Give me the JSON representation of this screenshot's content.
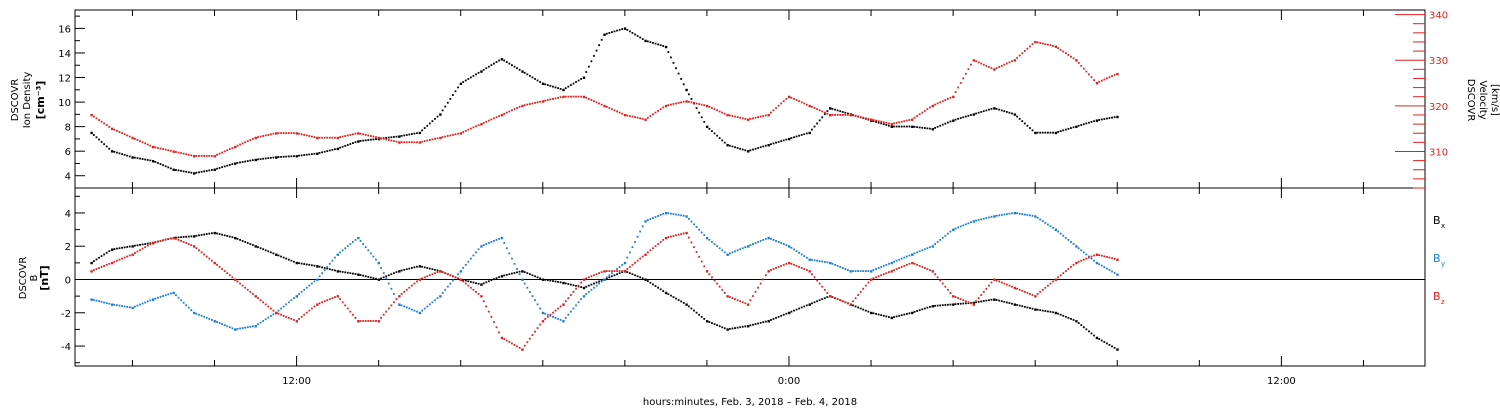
{
  "chart_data": [
    {
      "type": "scatter",
      "panel": "top",
      "ylabel_left": [
        "DSCOVR",
        "Ion Density",
        "[cm⁻³]"
      ],
      "ylabel_right": [
        "DSCOVR",
        "Velocity",
        "[km/s]"
      ],
      "ylim_left": [
        3,
        17.5
      ],
      "ylim_right": [
        302,
        341
      ],
      "yticks_left": [
        4,
        6,
        8,
        10,
        12,
        14,
        16
      ],
      "yticks_right": [
        310,
        320,
        330,
        340
      ],
      "series": [
        {
          "color": "#000000",
          "axis": "left",
          "x": [
            7.0,
            7.5,
            8.0,
            8.5,
            9.0,
            9.5,
            10.0,
            10.5,
            11.0,
            11.5,
            12.0,
            12.5,
            13.0,
            13.5,
            14.0,
            14.5,
            15.0,
            15.5,
            16.0,
            16.5,
            17.0,
            17.5,
            18.0,
            18.5,
            19.0,
            19.5,
            20.0,
            20.5,
            21.0,
            21.5,
            22.0,
            22.5,
            23.0,
            23.5,
            24.0,
            24.5,
            25.0,
            25.5,
            26.0,
            26.5,
            27.0,
            27.5,
            28.0,
            28.5,
            29.0,
            29.5,
            30.0,
            30.5,
            31.0,
            31.5,
            32.0
          ],
          "y": [
            7.5,
            6.0,
            5.5,
            5.2,
            4.5,
            4.2,
            4.5,
            5.0,
            5.3,
            5.5,
            5.6,
            5.8,
            6.2,
            6.8,
            7.0,
            7.2,
            7.5,
            9.0,
            11.5,
            12.5,
            13.5,
            12.5,
            11.5,
            11.0,
            12.0,
            15.5,
            16.0,
            15.0,
            14.5,
            11.0,
            8.0,
            6.5,
            6.0,
            6.5,
            7.0,
            7.5,
            9.5,
            9.0,
            8.5,
            8.0,
            8.0,
            7.8,
            8.5,
            9.0,
            9.5,
            9.0,
            7.5,
            7.5,
            8.0,
            8.5,
            8.8
          ]
        },
        {
          "color": "#e02020",
          "axis": "right",
          "x": [
            7.0,
            7.5,
            8.0,
            8.5,
            9.0,
            9.5,
            10.0,
            10.5,
            11.0,
            11.5,
            12.0,
            12.5,
            13.0,
            13.5,
            14.0,
            14.5,
            15.0,
            15.5,
            16.0,
            16.5,
            17.0,
            17.5,
            18.0,
            18.5,
            19.0,
            19.5,
            20.0,
            20.5,
            21.0,
            21.5,
            22.0,
            22.5,
            23.0,
            23.5,
            24.0,
            24.5,
            25.0,
            25.5,
            26.0,
            26.5,
            27.0,
            27.5,
            28.0,
            28.5,
            29.0,
            29.5,
            30.0,
            30.5,
            31.0,
            31.5,
            32.0
          ],
          "y": [
            318,
            315,
            313,
            311,
            310,
            309,
            309,
            311,
            313,
            314,
            314,
            313,
            313,
            314,
            313,
            312,
            312,
            313,
            314,
            316,
            318,
            320,
            321,
            322,
            322,
            320,
            318,
            317,
            320,
            321,
            320,
            318,
            317,
            318,
            322,
            320,
            318,
            318,
            317,
            316,
            317,
            320,
            322,
            330,
            328,
            330,
            334,
            333,
            330,
            325,
            327
          ]
        }
      ]
    },
    {
      "type": "scatter",
      "panel": "bottom",
      "ylabel_left": [
        "DSCOVR",
        "B",
        "[nT]"
      ],
      "ylim": [
        -5.2,
        5.5
      ],
      "yticks": [
        -4,
        -2,
        0,
        2,
        4
      ],
      "zero_line": true,
      "series": [
        {
          "name": "B",
          "sub": "x",
          "color": "#000000",
          "x": [
            7.0,
            7.5,
            8.0,
            8.5,
            9.0,
            9.5,
            10.0,
            10.5,
            11.0,
            11.5,
            12.0,
            12.5,
            13.0,
            13.5,
            14.0,
            14.5,
            15.0,
            15.5,
            16.0,
            16.5,
            17.0,
            17.5,
            18.0,
            18.5,
            19.0,
            19.5,
            20.0,
            20.5,
            21.0,
            21.5,
            22.0,
            22.5,
            23.0,
            23.5,
            24.0,
            24.5,
            25.0,
            25.5,
            26.0,
            26.5,
            27.0,
            27.5,
            28.0,
            28.5,
            29.0,
            29.5,
            30.0,
            30.5,
            31.0,
            31.5,
            32.0
          ],
          "y": [
            1.0,
            1.8,
            2.0,
            2.2,
            2.5,
            2.6,
            2.8,
            2.5,
            2.0,
            1.5,
            1.0,
            0.8,
            0.5,
            0.3,
            0.0,
            0.5,
            0.8,
            0.5,
            0.0,
            -0.3,
            0.2,
            0.5,
            0.0,
            -0.2,
            -0.5,
            0.0,
            0.5,
            0.0,
            -0.8,
            -1.5,
            -2.5,
            -3.0,
            -2.8,
            -2.5,
            -2.0,
            -1.5,
            -1.0,
            -1.5,
            -2.0,
            -2.3,
            -2.0,
            -1.6,
            -1.5,
            -1.4,
            -1.2,
            -1.5,
            -1.8,
            -2.0,
            -2.5,
            -3.5,
            -4.2
          ]
        },
        {
          "name": "B",
          "sub": "y",
          "color": "#1a7fd4",
          "x": [
            7.0,
            7.5,
            8.0,
            8.5,
            9.0,
            9.5,
            10.0,
            10.5,
            11.0,
            11.5,
            12.0,
            12.5,
            13.0,
            13.5,
            14.0,
            14.5,
            15.0,
            15.5,
            16.0,
            16.5,
            17.0,
            17.5,
            18.0,
            18.5,
            19.0,
            19.5,
            20.0,
            20.5,
            21.0,
            21.5,
            22.0,
            22.5,
            23.0,
            23.5,
            24.0,
            24.5,
            25.0,
            25.5,
            26.0,
            26.5,
            27.0,
            27.5,
            28.0,
            28.5,
            29.0,
            29.5,
            30.0,
            30.5,
            31.0,
            31.5,
            32.0
          ],
          "y": [
            -1.2,
            -1.5,
            -1.7,
            -1.2,
            -0.8,
            -2.0,
            -2.5,
            -3.0,
            -2.8,
            -2.0,
            -1.0,
            0.0,
            1.5,
            2.5,
            1.0,
            -1.5,
            -2.0,
            -1.0,
            0.5,
            2.0,
            2.5,
            0.0,
            -2.0,
            -2.5,
            -1.0,
            0.0,
            1.0,
            3.5,
            4.0,
            3.8,
            2.5,
            1.5,
            2.0,
            2.5,
            2.0,
            1.2,
            1.0,
            0.5,
            0.5,
            1.0,
            1.5,
            2.0,
            3.0,
            3.5,
            3.8,
            4.0,
            3.8,
            3.0,
            2.0,
            1.0,
            0.3
          ]
        },
        {
          "name": "B",
          "sub": "z",
          "color": "#e02020",
          "x": [
            7.0,
            7.5,
            8.0,
            8.5,
            9.0,
            9.5,
            10.0,
            10.5,
            11.0,
            11.5,
            12.0,
            12.5,
            13.0,
            13.5,
            14.0,
            14.5,
            15.0,
            15.5,
            16.0,
            16.5,
            17.0,
            17.5,
            18.0,
            18.5,
            19.0,
            19.5,
            20.0,
            20.5,
            21.0,
            21.5,
            22.0,
            22.5,
            23.0,
            23.5,
            24.0,
            24.5,
            25.0,
            25.5,
            26.0,
            26.5,
            27.0,
            27.5,
            28.0,
            28.5,
            29.0,
            29.5,
            30.0,
            30.5,
            31.0,
            31.5,
            32.0
          ],
          "y": [
            0.5,
            1.0,
            1.5,
            2.2,
            2.5,
            2.0,
            1.0,
            0.0,
            -1.0,
            -2.0,
            -2.5,
            -1.5,
            -1.0,
            -2.5,
            -2.5,
            -1.0,
            0.0,
            0.5,
            0.0,
            -1.0,
            -3.5,
            -4.2,
            -2.5,
            -1.5,
            0.0,
            0.5,
            0.5,
            1.5,
            2.5,
            2.8,
            0.5,
            -1.0,
            -1.5,
            0.5,
            1.0,
            0.5,
            -1.0,
            -1.5,
            0.0,
            0.5,
            1.0,
            0.5,
            -1.0,
            -1.5,
            0.0,
            -0.5,
            -1.0,
            0.0,
            1.0,
            1.5,
            1.2
          ]
        }
      ]
    }
  ],
  "x_axis": {
    "label": "hours:minutes, Feb.  3, 2018 – Feb.  4, 2018",
    "range": [
      6.6,
      39.5
    ],
    "ticks": [
      {
        "x": 12,
        "label": "12:00"
      },
      {
        "x": 24,
        "label": "0:00"
      },
      {
        "x": 36,
        "label": "12:00"
      }
    ],
    "minor_step": 2
  }
}
